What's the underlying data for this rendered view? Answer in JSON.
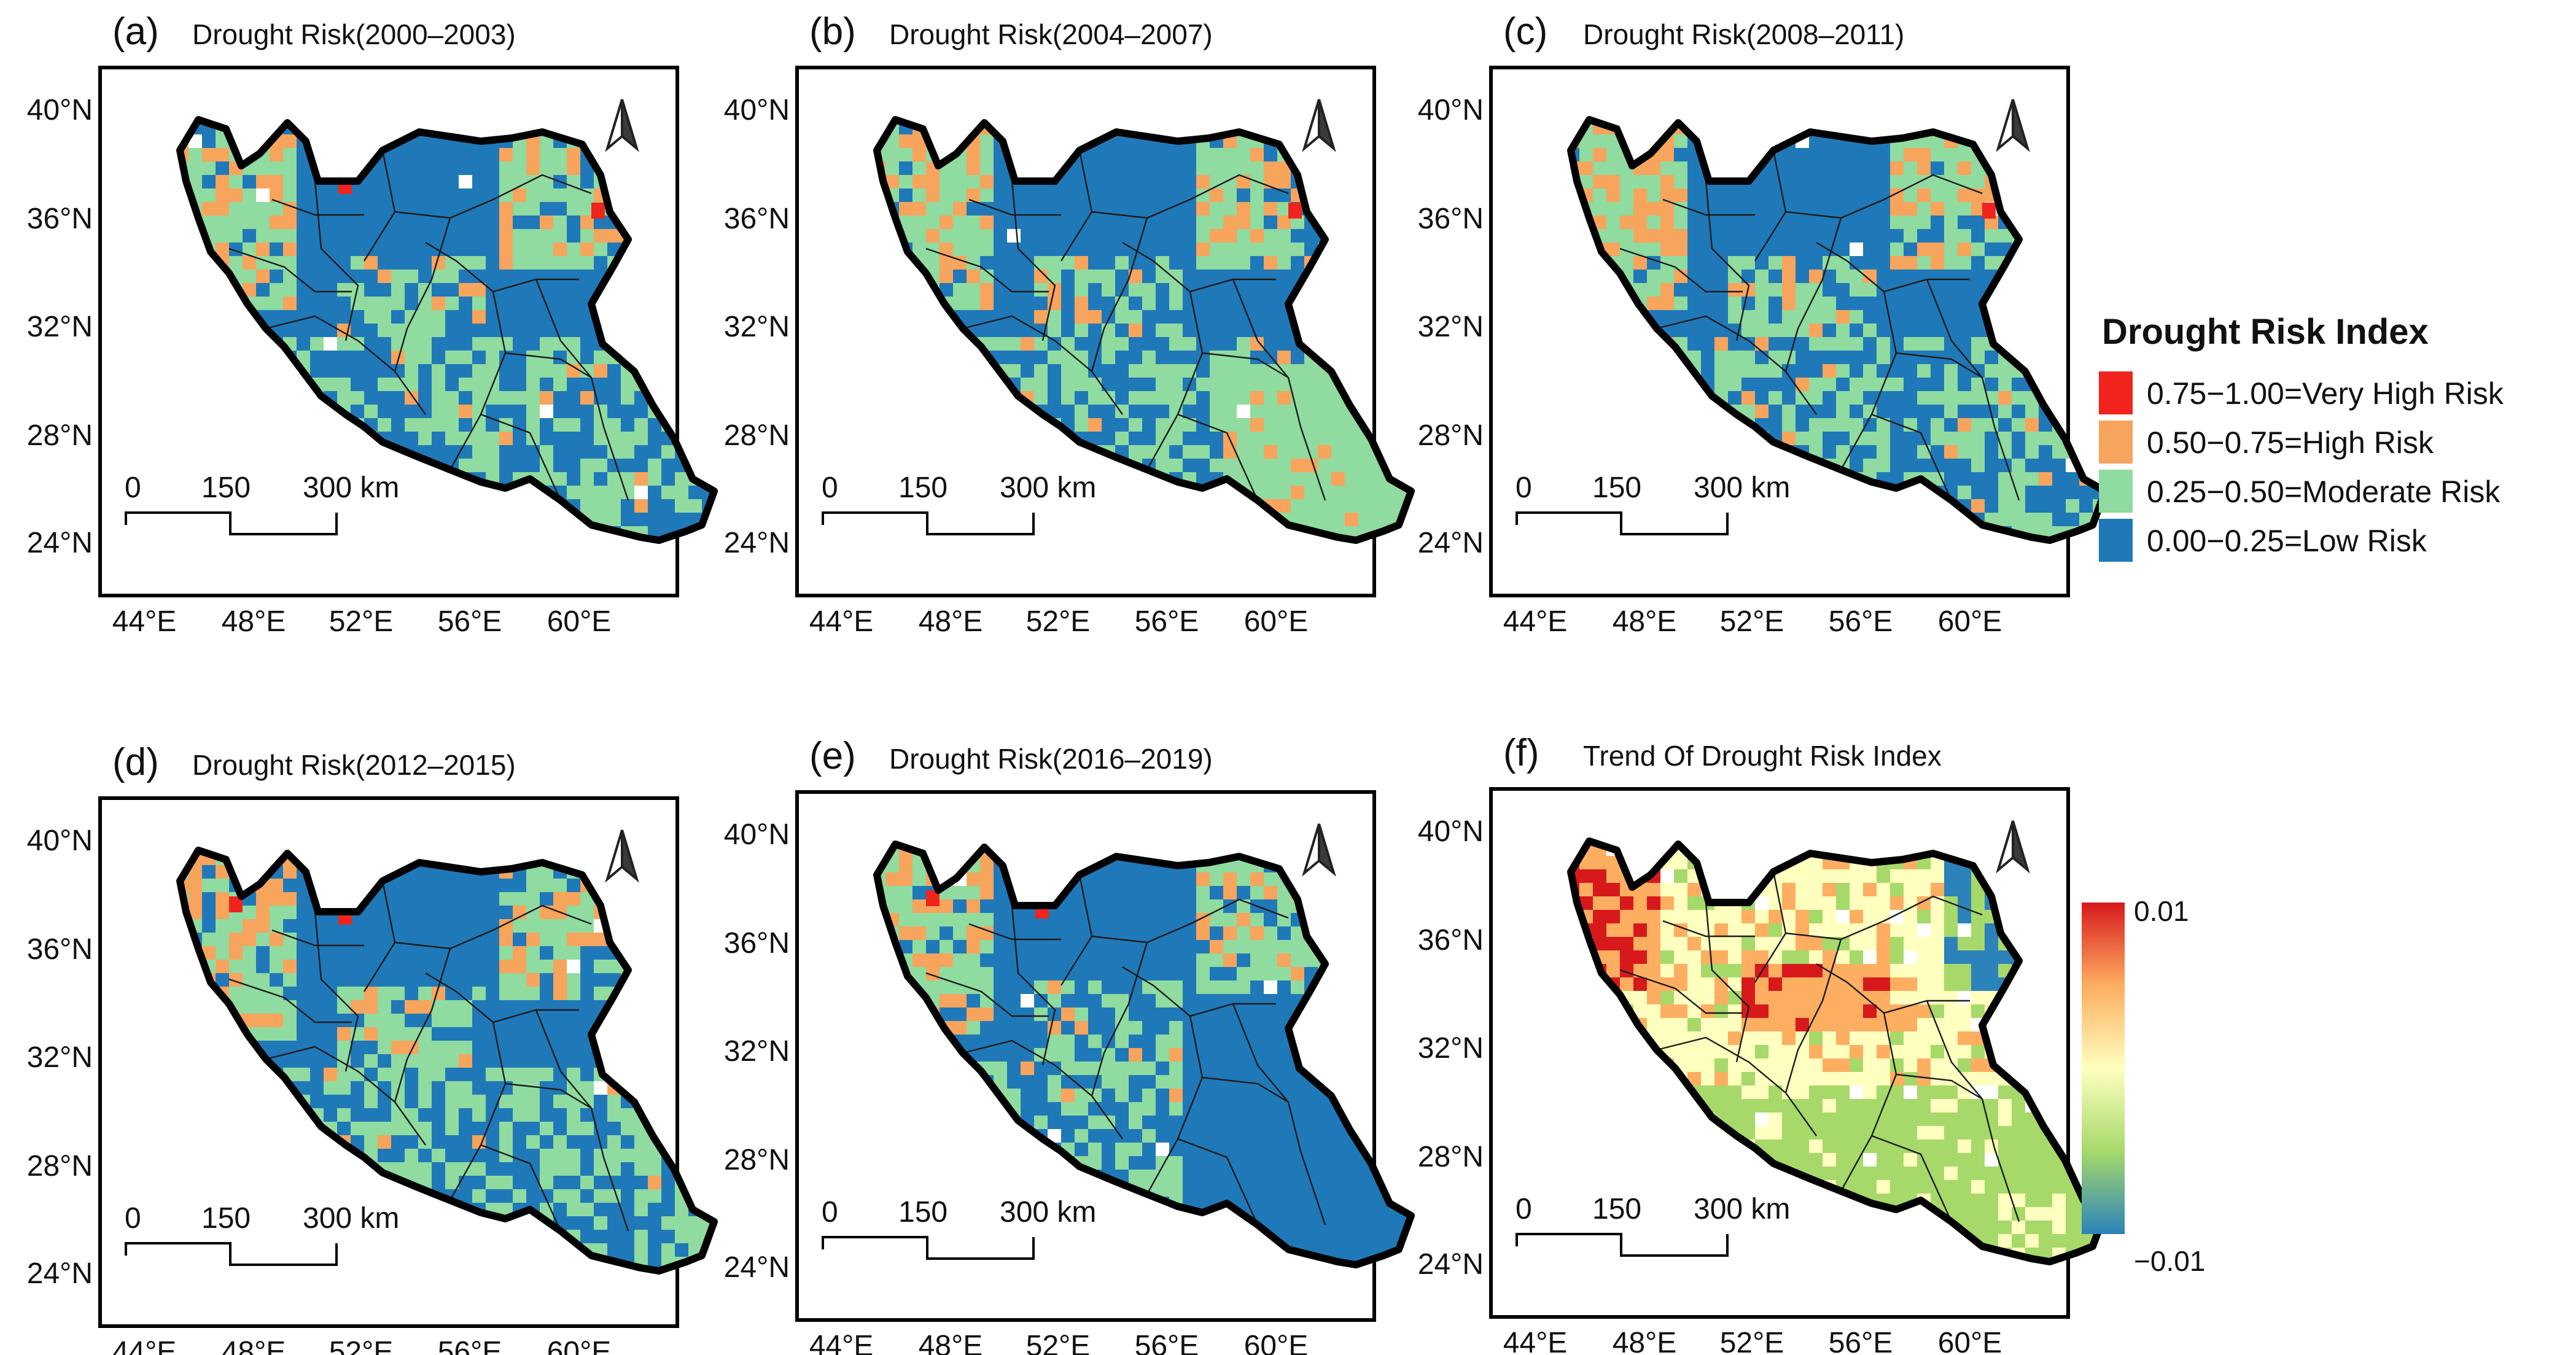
{
  "panels": [
    {
      "id": "a",
      "label": "(a)",
      "title": "Drought Risk(2000–2003)",
      "kind": "class",
      "hotspots": [
        "ne",
        "center-n"
      ]
    },
    {
      "id": "b",
      "label": "(b)",
      "title": "Drought Risk(2004–2007)",
      "kind": "class",
      "hotspots": [
        "ne"
      ]
    },
    {
      "id": "c",
      "label": "(c)",
      "title": "Drought Risk(2008–2011)",
      "kind": "class",
      "hotspots": [
        "ne"
      ]
    },
    {
      "id": "d",
      "label": "(d)",
      "title": "Drought Risk(2012–2015)",
      "kind": "class",
      "hotspots": [
        "nw",
        "center-n"
      ]
    },
    {
      "id": "e",
      "label": "(e)",
      "title": "Drought Risk(2016–2019)",
      "kind": "class",
      "hotspots": [
        "nw",
        "center-n"
      ]
    },
    {
      "id": "f",
      "label": "(f)",
      "title": "Trend Of Drought Risk Index",
      "kind": "trend",
      "hotspots": []
    }
  ],
  "axes": {
    "lat_ticks": [
      "40°N",
      "36°N",
      "32°N",
      "28°N",
      "24°N"
    ],
    "lon_ticks": [
      "44°E",
      "48°E",
      "52°E",
      "56°E",
      "60°E"
    ]
  },
  "scalebar": {
    "labels": [
      "0",
      "150",
      "300 km"
    ]
  },
  "north_arrow": "north-arrow-icon",
  "legend": {
    "title": "Drought Risk Index",
    "items": [
      {
        "label": "0.75−1.00=Very High Risk",
        "color": "#f0241c"
      },
      {
        "label": "0.50−0.75=High Risk",
        "color": "#f7a45c"
      },
      {
        "label": "0.25−0.50=Moderate Risk",
        "color": "#8fdba0"
      },
      {
        "label": "0.00−0.25=Low Risk",
        "color": "#1f79b8"
      }
    ]
  },
  "colorbar": {
    "max_label": "0.01",
    "min_label": "−0.01",
    "stops": [
      "#d7191c",
      "#fdae61",
      "#ffffbf",
      "#a6d96a",
      "#2b83ba"
    ]
  }
}
